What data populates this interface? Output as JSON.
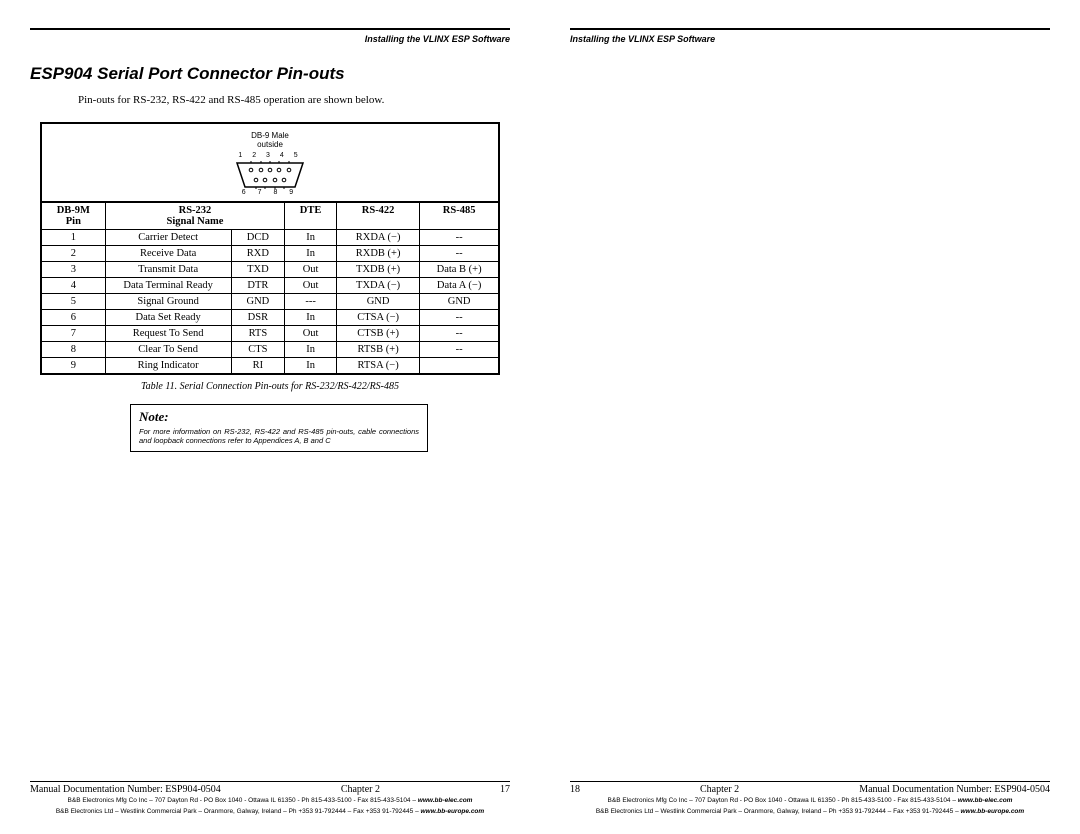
{
  "header": {
    "text": "Installing the VLINX ESP Software"
  },
  "section": {
    "title": "ESP904 Serial Port Connector Pin-outs",
    "intro": "Pin-outs for RS-232, RS-422 and RS-485 operation are shown below."
  },
  "diagram": {
    "label_top": "DB-9 Male",
    "label_sub": "outside",
    "pins_top": "1 2 3 4 5",
    "pins_bottom": "6 7 8 9"
  },
  "table": {
    "headers": {
      "col1_line1": "DB-9M",
      "col1_line2": "Pin",
      "col2_line1": "RS-232",
      "col2_line2": "Signal Name",
      "col3": "DTE",
      "col4": "RS-422",
      "col5": "RS-485"
    },
    "rows": [
      {
        "pin": "1",
        "signal": "Carrier Detect",
        "abbr": "DCD",
        "dte": "In",
        "rs422": "RXDA (−)",
        "rs485": "--"
      },
      {
        "pin": "2",
        "signal": "Receive Data",
        "abbr": "RXD",
        "dte": "In",
        "rs422": "RXDB (+)",
        "rs485": "--"
      },
      {
        "pin": "3",
        "signal": "Transmit Data",
        "abbr": "TXD",
        "dte": "Out",
        "rs422": "TXDB (+)",
        "rs485": "Data B (+)"
      },
      {
        "pin": "4",
        "signal": "Data Terminal Ready",
        "abbr": "DTR",
        "dte": "Out",
        "rs422": "TXDA (−)",
        "rs485": "Data A (−)"
      },
      {
        "pin": "5",
        "signal": "Signal Ground",
        "abbr": "GND",
        "dte": "---",
        "rs422": "GND",
        "rs485": "GND"
      },
      {
        "pin": "6",
        "signal": "Data Set Ready",
        "abbr": "DSR",
        "dte": "In",
        "rs422": "CTSA (−)",
        "rs485": "--"
      },
      {
        "pin": "7",
        "signal": "Request To Send",
        "abbr": "RTS",
        "dte": "Out",
        "rs422": "CTSB (+)",
        "rs485": "--"
      },
      {
        "pin": "8",
        "signal": "Clear To Send",
        "abbr": "CTS",
        "dte": "In",
        "rs422": "RTSB (+)",
        "rs485": "--"
      },
      {
        "pin": "9",
        "signal": "Ring Indicator",
        "abbr": "RI",
        "dte": "In",
        "rs422": "RTSA (−)",
        "rs485": ""
      }
    ],
    "caption": "Table 11. Serial Connection Pin-outs for RS-232/RS-422/RS-485"
  },
  "note": {
    "title": "Note:",
    "body": "For more information on RS-232, RS-422 and RS-485 pin-outs, cable connections and loopback connections refer to Appendices A, B and C"
  },
  "footer": {
    "doc_number": "Manual Documentation Number: ESP904-0504",
    "chapter": "Chapter 2",
    "page_left": "17",
    "page_right": "18",
    "fine1_prefix": "B&B Electronics Mfg Co Inc – 707 Dayton Rd - PO Box 1040 - Ottawa IL 61350 - Ph 815-433-5100 - Fax 815-433-5104 – ",
    "fine1_site": "www.bb-elec.com",
    "fine2_prefix": "B&B Electronics Ltd – Westlink Commercial Park – Oranmore, Galway, Ireland – Ph +353 91-792444 – Fax +353 91-792445 – ",
    "fine2_site": "www.bb-europe.com"
  }
}
